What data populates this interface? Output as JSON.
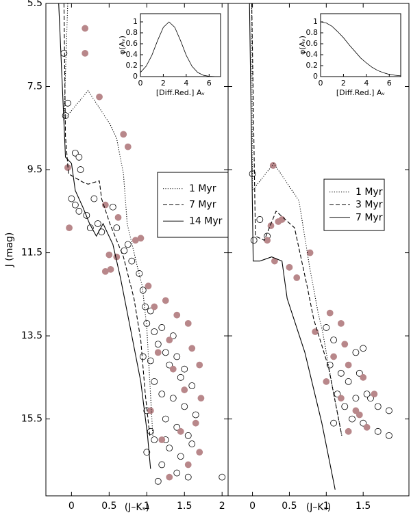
{
  "chart_data": [
    {
      "type": "scatter",
      "xlabel": "(J–Kₛ)",
      "ylabel": "J (mag)",
      "xlim": [
        -0.34,
        2.08
      ],
      "ylim": [
        5.5,
        17.35
      ],
      "invert_y": true,
      "xticks": [
        0,
        0.5,
        1,
        1.5,
        2
      ],
      "yticks": [
        5.5,
        7.5,
        9.5,
        11.5,
        13.5,
        15.5
      ],
      "series": [
        {
          "color": "#ffffff",
          "edgecolor": "#000000",
          "x": [
            -0.1,
            -0.05,
            -0.08,
            0.05,
            0.1,
            0.12,
            0.0,
            0.05,
            0.1,
            0.2,
            0.3,
            0.25,
            0.35,
            0.4,
            0.55,
            0.6,
            0.7,
            0.75,
            0.8,
            0.9,
            0.95,
            0.98,
            1.05,
            1.0,
            1.1,
            1.2,
            1.15,
            1.25,
            1.05,
            1.3,
            1.4,
            1.45,
            1.1,
            1.2,
            1.35,
            1.5,
            1.0,
            1.25,
            1.4,
            1.55,
            1.1,
            1.3,
            1.45,
            1.6,
            1.2,
            1.4,
            1.0,
            1.15,
            1.55,
            1.65,
            1.35,
            1.5,
            0.95,
            1.25,
            1.05,
            2.0,
            1.6
          ],
          "values": [
            6.7,
            7.9,
            8.2,
            9.1,
            9.2,
            9.5,
            10.2,
            10.35,
            10.5,
            10.6,
            10.2,
            10.9,
            10.8,
            11.0,
            10.4,
            10.9,
            11.45,
            11.3,
            11.7,
            12.0,
            12.4,
            12.8,
            12.9,
            13.2,
            13.4,
            13.3,
            13.7,
            13.9,
            14.1,
            14.2,
            14.0,
            14.5,
            14.6,
            14.9,
            15.0,
            15.2,
            15.3,
            15.5,
            15.7,
            15.9,
            16.0,
            16.2,
            16.4,
            16.1,
            16.6,
            16.8,
            16.3,
            17.0,
            16.9,
            15.4,
            13.5,
            14.3,
            14.0,
            16.0,
            15.8,
            16.9,
            14.7
          ]
        },
        {
          "color": "#b8878a",
          "edgecolor": "#b8878a",
          "x": [
            0.18,
            0.18,
            0.37,
            0.69,
            0.75,
            0.45,
            0.62,
            -0.03,
            -0.05,
            0.85,
            0.92,
            0.5,
            0.45,
            0.52,
            0.6,
            1.02,
            1.1,
            1.25,
            1.4,
            1.55,
            1.3,
            1.6,
            1.7,
            1.35,
            1.5,
            1.72,
            1.65,
            1.45,
            1.2,
            1.7,
            1.55,
            1.3,
            1.05,
            1.15
          ],
          "values": [
            6.1,
            6.7,
            7.75,
            8.65,
            8.95,
            10.35,
            10.65,
            10.9,
            9.45,
            11.2,
            11.15,
            11.55,
            11.95,
            11.9,
            11.6,
            12.3,
            12.8,
            12.65,
            13.0,
            13.2,
            13.6,
            13.8,
            14.2,
            14.3,
            14.8,
            15.0,
            15.6,
            15.8,
            16.0,
            16.3,
            16.6,
            16.9,
            15.3,
            13.9
          ]
        }
      ],
      "lines": [
        {
          "name": "1 Myr",
          "style": "dotted",
          "x": [
            -0.05,
            -0.1,
            0.22,
            0.51,
            0.6,
            0.69,
            0.74,
            0.87,
            0.94,
            1.0,
            1.04,
            1.08
          ],
          "values": [
            5.5,
            8.3,
            7.6,
            8.4,
            8.75,
            9.6,
            10.8,
            11.8,
            12.3,
            13.3,
            14.6,
            15.9
          ]
        },
        {
          "name": "7 Myr",
          "style": "dashed",
          "x": [
            -0.1,
            -0.08,
            -0.04,
            0.15,
            0.22,
            0.37,
            0.4,
            0.51,
            0.69,
            0.83,
            0.92,
            0.98,
            1.04
          ],
          "values": [
            5.5,
            8.7,
            9.6,
            9.8,
            9.85,
            9.77,
            10.2,
            10.8,
            11.6,
            12.6,
            13.6,
            14.9,
            15.9
          ]
        },
        {
          "name": "14 Myr",
          "style": "solid",
          "x": [
            -0.17,
            -0.08,
            0.0,
            0.05,
            0.15,
            0.24,
            0.33,
            0.42,
            0.55,
            0.65,
            0.78,
            0.92,
            1.01,
            1.05
          ],
          "values": [
            5.5,
            9.2,
            9.35,
            10.0,
            10.4,
            10.8,
            11.1,
            10.8,
            11.3,
            12.1,
            13.3,
            14.6,
            15.9,
            16.7
          ]
        }
      ],
      "inset": {
        "type": "line",
        "xlabel": "[Diff.Red.] Aᵥ",
        "ylabel": "φ(Aᵥ)",
        "xlim": [
          0,
          7
        ],
        "ylim": [
          0,
          1.15
        ],
        "xticks": [
          0,
          2,
          4,
          6
        ],
        "yticks": [
          0,
          0.2,
          0.4,
          0.6,
          0.8,
          1
        ],
        "x": [
          0,
          0.5,
          1,
          1.5,
          2,
          2.5,
          3,
          3.5,
          4,
          4.5,
          5,
          5.5,
          6,
          6.5,
          7
        ],
        "values": [
          0.076,
          0.19,
          0.39,
          0.66,
          0.9,
          1,
          0.9,
          0.66,
          0.39,
          0.19,
          0.076,
          0.024,
          0.006,
          0.001,
          0
        ]
      }
    },
    {
      "type": "scatter",
      "xlabel": "(J–Kₛ)",
      "xlim": [
        -0.33,
        2.12
      ],
      "ylim": [
        5.5,
        17.35
      ],
      "invert_y": true,
      "xticks": [
        0,
        0.5,
        1,
        1.5
      ],
      "series": [
        {
          "color": "#ffffff",
          "edgecolor": "#000000",
          "x": [
            0.0,
            0.1,
            0.2,
            0.02,
            1.0,
            1.1,
            1.4,
            1.5,
            1.05,
            1.2,
            1.3,
            1.15,
            1.4,
            1.6,
            1.25,
            1.35,
            1.1,
            1.5,
            1.7,
            1.85,
            1.85,
            1.7,
            1.45,
            1.55
          ],
          "values": [
            9.6,
            10.7,
            11.1,
            11.2,
            13.3,
            13.6,
            13.9,
            13.8,
            14.2,
            14.4,
            14.6,
            14.9,
            15.0,
            15.0,
            15.2,
            15.5,
            15.6,
            15.6,
            15.2,
            15.3,
            15.9,
            15.8,
            14.4,
            14.9
          ]
        },
        {
          "color": "#b8878a",
          "edgecolor": "#b8878a",
          "x": [
            0.2,
            0.25,
            0.35,
            0.4,
            0.3,
            0.5,
            0.6,
            0.78,
            0.28,
            1.05,
            1.2,
            1.25,
            1.1,
            1.3,
            1.5,
            1.65,
            1.2,
            1.4,
            1.55,
            1.3,
            1.45,
            1.0,
            0.85
          ],
          "values": [
            11.2,
            10.85,
            10.75,
            10.7,
            11.7,
            11.85,
            12.1,
            11.5,
            9.4,
            12.95,
            13.2,
            13.7,
            14.0,
            14.2,
            14.5,
            14.9,
            15.0,
            15.3,
            15.7,
            15.8,
            15.4,
            14.6,
            13.4
          ]
        }
      ],
      "lines": [
        {
          "name": "1 Myr",
          "style": "dotted",
          "x": [
            -0.01,
            0.0,
            0.29,
            0.63,
            0.77,
            0.89,
            0.95,
            1.07,
            1.21
          ],
          "values": [
            5.5,
            10.0,
            9.35,
            10.25,
            11.8,
            12.95,
            13.4,
            14.6,
            15.9
          ]
        },
        {
          "name": "3 Myr",
          "style": "dashed",
          "x": [
            -0.01,
            0.04,
            0.16,
            0.32,
            0.57,
            0.74,
            0.83,
            1.03,
            1.21
          ],
          "values": [
            5.5,
            11.1,
            11.2,
            10.5,
            10.9,
            12.3,
            13.1,
            14.25,
            15.9
          ]
        },
        {
          "name": "7 Myr",
          "style": "solid",
          "x": [
            -0.04,
            0.01,
            0.1,
            0.26,
            0.4,
            0.47,
            0.71,
            0.94,
            1.12
          ],
          "values": [
            5.5,
            11.7,
            11.7,
            11.6,
            11.7,
            12.6,
            13.9,
            15.6,
            17.2
          ]
        }
      ],
      "inset": {
        "type": "line",
        "xlabel": "[Diff.Red.] Aᵥ",
        "ylabel": "φ(Aᵥ)",
        "xlim": [
          0,
          7
        ],
        "ylim": [
          0,
          1.15
        ],
        "xticks": [
          0,
          2,
          4,
          6
        ],
        "yticks": [
          0,
          0.2,
          0.4,
          0.6,
          0.8,
          1
        ],
        "x": [
          0,
          0.5,
          1,
          1.5,
          2,
          2.5,
          3,
          3.5,
          4,
          4.5,
          5,
          5.5,
          6,
          6.5,
          7
        ],
        "values": [
          1,
          0.98,
          0.92,
          0.82,
          0.71,
          0.58,
          0.46,
          0.34,
          0.25,
          0.17,
          0.11,
          0.07,
          0.04,
          0.025,
          0.014
        ]
      }
    }
  ]
}
